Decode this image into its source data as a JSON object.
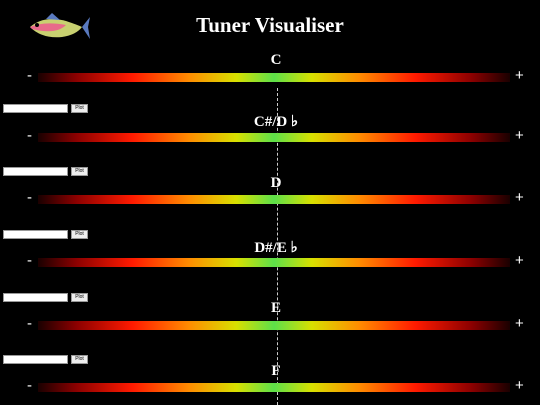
{
  "header": {
    "title": "Tuner Visualiser"
  },
  "scale": {
    "minus": "-",
    "plus": "+"
  },
  "rows": [
    {
      "note": "C"
    },
    {
      "note": "C#/D ♭"
    },
    {
      "note": "D"
    },
    {
      "note": "D#/E ♭"
    },
    {
      "note": "E"
    },
    {
      "note": "F"
    }
  ],
  "controls": [
    {
      "button": "Plot"
    },
    {
      "button": "Plot"
    },
    {
      "button": "Plot"
    },
    {
      "button": "Plot"
    },
    {
      "button": "Plot"
    }
  ]
}
